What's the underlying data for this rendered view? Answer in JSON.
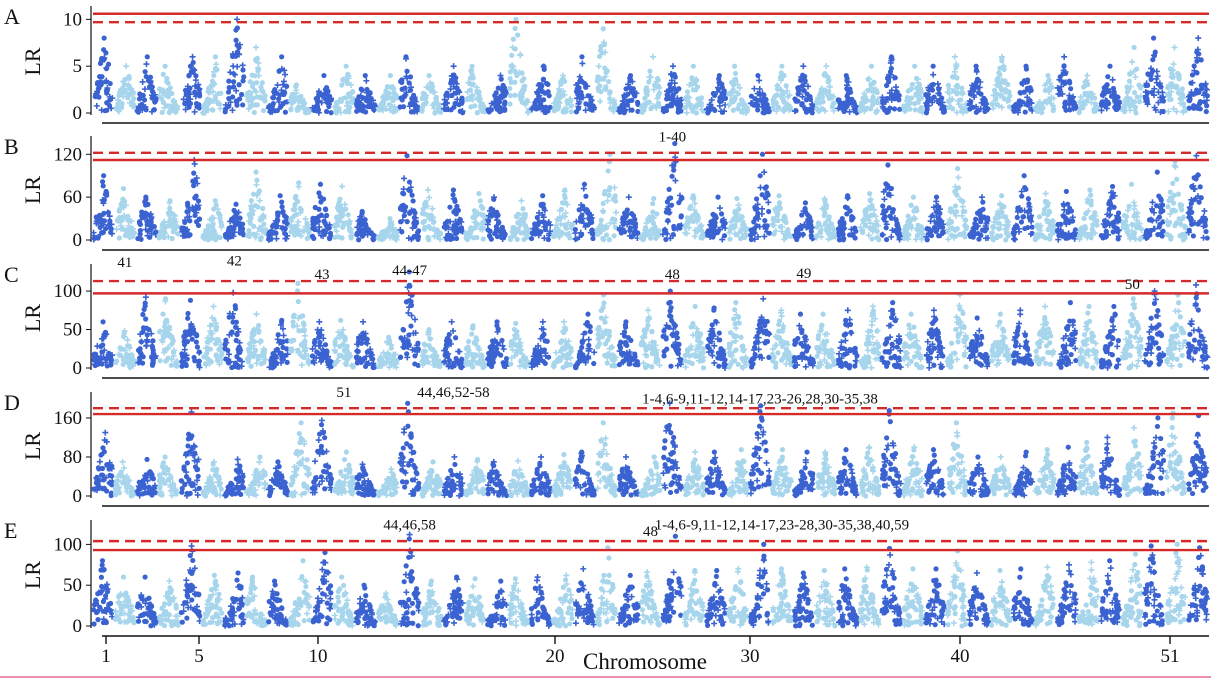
{
  "colors": {
    "dark_blue": "#3a62d0",
    "light_blue": "#a6d5ec",
    "threshold_red": "#d42a2a",
    "bottom_rule": "#e66a9a"
  },
  "chart_data": {
    "type": "scatter",
    "subtype": "manhattan",
    "xlabel": "Chromosome",
    "x_ticks": [
      "1",
      "5",
      "10",
      "20",
      "30",
      "40",
      "51"
    ],
    "chromosome_count": 51,
    "marker_shapes": [
      "dot",
      "plus"
    ],
    "panels": [
      {
        "letter": "A",
        "ylabel": "LR",
        "ylim": [
          0,
          11
        ],
        "yticks": [
          0,
          5,
          10
        ],
        "threshold_dashed": 9.7,
        "threshold_solid": 10.6,
        "chrom_max": [
          8,
          5,
          6,
          5,
          6,
          6,
          10,
          7,
          6,
          3,
          4,
          5,
          4,
          4,
          6,
          4,
          5,
          5,
          4,
          10,
          5,
          4,
          6,
          9,
          4,
          6,
          5,
          5,
          4,
          5,
          4,
          5,
          5,
          5,
          4,
          5,
          6,
          5,
          5,
          6,
          5,
          6,
          5,
          4,
          6,
          4,
          5,
          7,
          8,
          7,
          8
        ],
        "annotations": []
      },
      {
        "letter": "B",
        "ylabel": "LR",
        "ylim": [
          0,
          140
        ],
        "yticks": [
          0,
          60,
          120
        ],
        "threshold_dashed": 122,
        "threshold_solid": 112,
        "chrom_max": [
          90,
          72,
          60,
          55,
          112,
          55,
          50,
          95,
          62,
          80,
          78,
          75,
          40,
          30,
          118,
          70,
          70,
          65,
          60,
          55,
          62,
          70,
          78,
          120,
          60,
          58,
          135,
          62,
          60,
          58,
          120,
          62,
          52,
          58,
          62,
          65,
          105,
          60,
          60,
          100,
          60,
          62,
          90,
          65,
          68,
          70,
          75,
          78,
          95,
          110,
          118
        ],
        "annotations": [
          {
            "label": "1-40",
            "chrom": 27,
            "value": 138
          }
        ]
      },
      {
        "letter": "C",
        "ylabel": "LR",
        "ylim": [
          0,
          130
        ],
        "yticks": [
          0,
          50,
          100
        ],
        "threshold_dashed": 113,
        "threshold_solid": 97,
        "chrom_max": [
          60,
          48,
          92,
          90,
          88,
          80,
          98,
          70,
          62,
          110,
          60,
          62,
          60,
          40,
          125,
          50,
          60,
          55,
          60,
          58,
          60,
          60,
          70,
          95,
          60,
          75,
          100,
          80,
          78,
          85,
          90,
          75,
          70,
          70,
          75,
          80,
          85,
          70,
          75,
          95,
          65,
          70,
          75,
          80,
          85,
          80,
          80,
          90,
          100,
          95,
          108
        ],
        "annotations": [
          {
            "label": "41",
            "chrom": 2,
            "value": 131
          },
          {
            "label": "42",
            "chrom": 7,
            "value": 133
          },
          {
            "label": "43",
            "chrom": 11,
            "value": 116
          },
          {
            "label": "44-47",
            "chrom": 15,
            "value": 121
          },
          {
            "label": "48",
            "chrom": 27,
            "value": 116
          },
          {
            "label": "49",
            "chrom": 33,
            "value": 117
          },
          {
            "label": "50",
            "chrom": 48,
            "value": 103
          }
        ]
      },
      {
        "letter": "D",
        "ylabel": "LR",
        "ylim": [
          0,
          205
        ],
        "yticks": [
          0,
          80,
          160
        ],
        "threshold_dashed": 180,
        "threshold_solid": 168,
        "chrom_max": [
          130,
          70,
          75,
          80,
          172,
          70,
          75,
          80,
          70,
          150,
          155,
          90,
          65,
          55,
          190,
          70,
          80,
          75,
          70,
          72,
          80,
          85,
          90,
          150,
          80,
          80,
          190,
          90,
          90,
          95,
          185,
          95,
          90,
          90,
          95,
          100,
          175,
          100,
          95,
          150,
          80,
          80,
          90,
          95,
          100,
          110,
          120,
          140,
          160,
          170,
          165
        ],
        "annotations": [
          {
            "label": "51",
            "chrom": 12,
            "value": 203
          },
          {
            "label": "44,46,52-58",
            "chrom": 17,
            "value": 203
          },
          {
            "label": "1-4,6-9,11-12,14-17,23-26,28,30-35,38",
            "chrom": 31,
            "value": 190
          }
        ]
      },
      {
        "letter": "E",
        "ylabel": "LR",
        "ylim": [
          0,
          125
        ],
        "yticks": [
          0,
          50,
          100
        ],
        "threshold_dashed": 104,
        "threshold_solid": 93,
        "chrom_max": [
          80,
          60,
          60,
          55,
          98,
          62,
          65,
          60,
          55,
          80,
          90,
          60,
          50,
          40,
          112,
          55,
          60,
          58,
          55,
          58,
          60,
          62,
          70,
          96,
          62,
          66,
          110,
          68,
          68,
          70,
          100,
          70,
          65,
          68,
          70,
          72,
          95,
          70,
          70,
          92,
          65,
          68,
          70,
          72,
          75,
          78,
          80,
          88,
          98,
          100,
          96
        ],
        "annotations": [
          {
            "label": "44,46,58",
            "chrom": 15,
            "value": 118
          },
          {
            "label": "48",
            "chrom": 26,
            "value": 110
          },
          {
            "label": "1-4,6-9,11-12,14-17,23-28,30-35,38,40,59",
            "chrom": 32,
            "value": 118
          }
        ]
      }
    ]
  }
}
